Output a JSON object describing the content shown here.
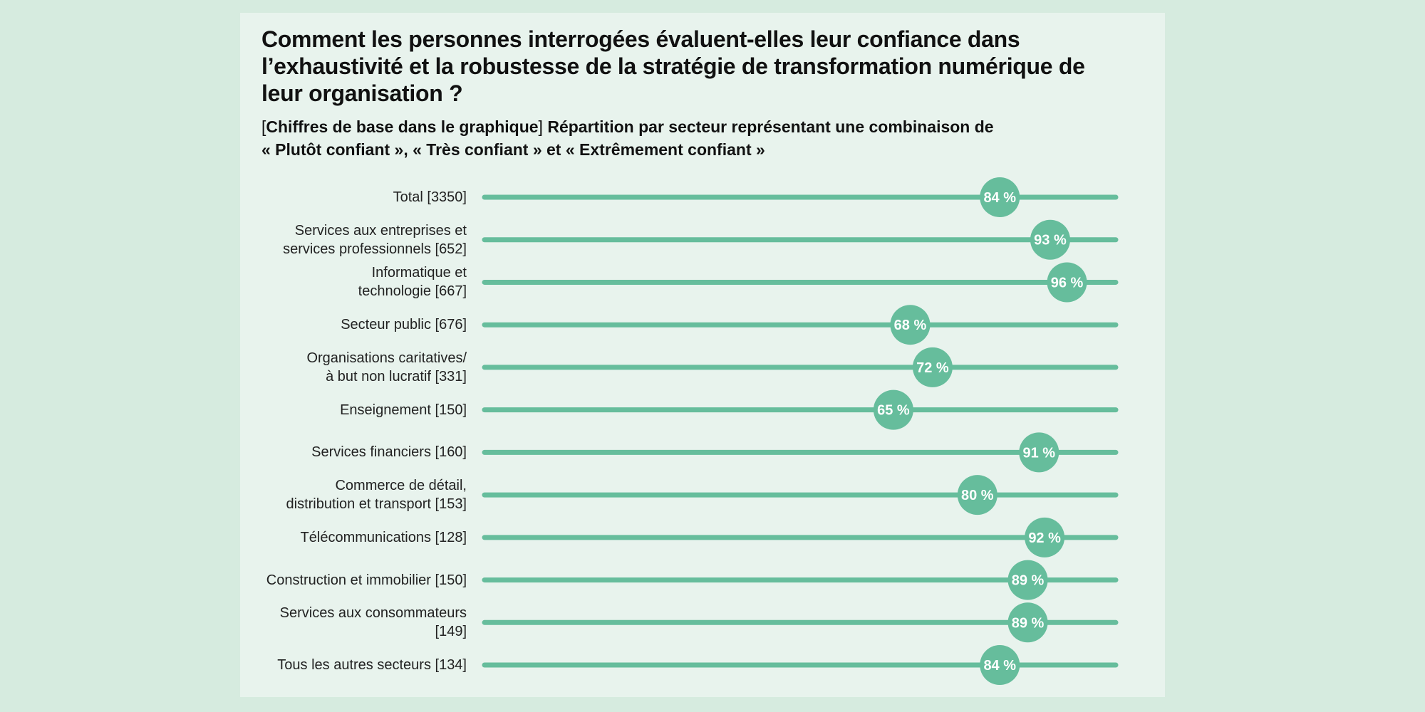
{
  "title": "Comment les personnes interrogées évaluent-elles leur confiance dans l’exhaustivité et la robustesse de la stratégie de transformation numérique de leur organisation ?",
  "subtitle": {
    "bracket_open": "[",
    "bracket_text": "Chiffres de base dans le graphique",
    "bracket_close": "]",
    "line1_rest": " Répartition par secteur représentant une combinaison de",
    "line2": "« Plutôt confiant », « Très confiant » et « Extrêmement confiant »"
  },
  "colors": {
    "accent": "#66bd9c",
    "label_text": "#222222",
    "card_bg": "#e8f3ed",
    "page_bg": "#d6ebdf"
  },
  "chart_data": {
    "type": "dot",
    "xlim": [
      0,
      100
    ],
    "unit": "%",
    "categories": [
      "Total [3350]",
      "Services aux entreprises et services professionnels [652]",
      "Informatique et technologie [667]",
      "Secteur public [676]",
      "Organisations caritatives/ à but non lucratif [331]",
      "Enseignement [150]",
      "Services financiers [160]",
      "Commerce de détail, distribution et transport [153]",
      "Télécommunications [128]",
      "Construction et immobilier [150]",
      "Services aux consommateurs [149]",
      "Tous les autres secteurs [134]"
    ],
    "category_lines": [
      [
        "Total [3350]"
      ],
      [
        "Services aux entreprises et",
        "services professionnels [652]"
      ],
      [
        "Informatique et",
        "technologie [667]"
      ],
      [
        "Secteur public [676]"
      ],
      [
        "Organisations caritatives/",
        "à but non lucratif [331]"
      ],
      [
        "Enseignement [150]"
      ],
      [
        "Services financiers [160]"
      ],
      [
        "Commerce de détail,",
        "distribution et transport [153]"
      ],
      [
        "Télécommunications [128]"
      ],
      [
        "Construction et immobilier [150]"
      ],
      [
        "Services aux consommateurs",
        "[149]"
      ],
      [
        "Tous les autres secteurs [134]"
      ]
    ],
    "values": [
      84,
      93,
      96,
      68,
      72,
      65,
      91,
      80,
      92,
      89,
      89,
      84
    ],
    "value_labels": [
      "84 %",
      "93 %",
      "96 %",
      "68 %",
      "72 %",
      "65 %",
      "91 %",
      "80 %",
      "92 %",
      "89 %",
      "89 %",
      "84 %"
    ]
  }
}
